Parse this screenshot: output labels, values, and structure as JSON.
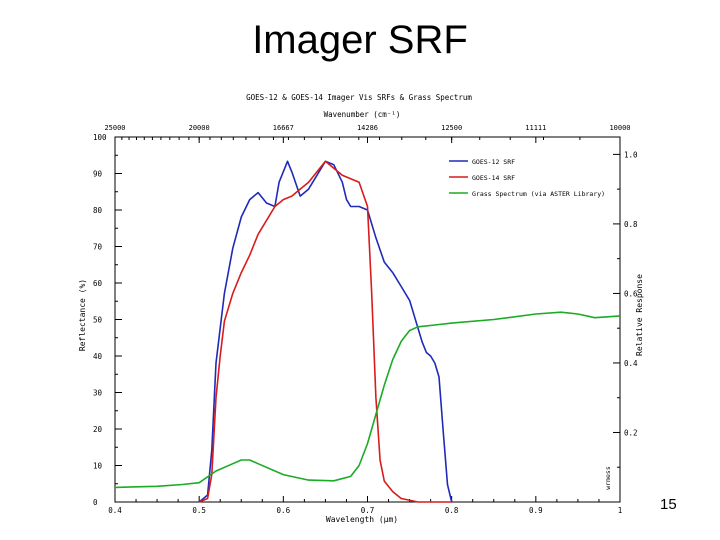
{
  "slide": {
    "title": "Imager SRF",
    "page_number": "15"
  },
  "chart_data": {
    "type": "line",
    "title": "GOES-12 & GOES-14 Imager Vis SRFs & Grass Spectrum",
    "xlabel": "Wavelength (μm)",
    "top_axis_label": "Wavenumber (cm⁻¹)",
    "ylabel_left": "Reflectance (%)",
    "ylabel_right": "Relative Response",
    "xlim": [
      0.4,
      1.0
    ],
    "ylim_left": [
      0,
      100
    ],
    "ylim_right": [
      0,
      1.05
    ],
    "x_ticks": [
      "0.4",
      "0.5",
      "0.6",
      "0.7",
      "0.8",
      "0.9",
      "1"
    ],
    "x_tick_values": [
      0.4,
      0.5,
      0.6,
      0.7,
      0.8,
      0.9,
      1.0
    ],
    "top_ticks": [
      "25000",
      "20000",
      "16667",
      "14286",
      "12500",
      "11111",
      "10000"
    ],
    "top_tick_values": [
      0.4,
      0.5,
      0.6,
      0.7,
      0.8,
      0.9,
      1.0
    ],
    "left_ticks": [
      "0",
      "10",
      "20",
      "30",
      "40",
      "50",
      "60",
      "70",
      "80",
      "90",
      "100"
    ],
    "left_tick_values": [
      0,
      10,
      20,
      30,
      40,
      50,
      60,
      70,
      80,
      90,
      100
    ],
    "right_ticks": [
      "0.2",
      "0.4",
      "0.6",
      "0.8",
      "1.0"
    ],
    "right_tick_values": [
      0.2,
      0.4,
      0.6,
      0.8,
      1.0
    ],
    "corner_note": "wrmess",
    "legend_position": "top-right",
    "grid": false,
    "series": [
      {
        "name": "GOES-12 SRF",
        "color": "#1f2bb8",
        "axis": "right",
        "x": [
          0.5,
          0.51,
          0.515,
          0.52,
          0.53,
          0.54,
          0.55,
          0.56,
          0.57,
          0.58,
          0.59,
          0.595,
          0.6,
          0.605,
          0.61,
          0.62,
          0.63,
          0.64,
          0.65,
          0.66,
          0.67,
          0.675,
          0.68,
          0.69,
          0.7,
          0.71,
          0.72,
          0.73,
          0.74,
          0.75,
          0.76,
          0.765,
          0.77,
          0.775,
          0.78,
          0.785,
          0.79,
          0.795,
          0.8
        ],
        "y": [
          0.0,
          0.02,
          0.15,
          0.4,
          0.6,
          0.73,
          0.82,
          0.87,
          0.89,
          0.86,
          0.85,
          0.92,
          0.95,
          0.98,
          0.95,
          0.88,
          0.9,
          0.94,
          0.98,
          0.97,
          0.92,
          0.87,
          0.85,
          0.85,
          0.84,
          0.76,
          0.69,
          0.66,
          0.62,
          0.58,
          0.5,
          0.46,
          0.43,
          0.42,
          0.4,
          0.36,
          0.2,
          0.05,
          0.0
        ]
      },
      {
        "name": "GOES-14 SRF",
        "color": "#d81c1c",
        "axis": "right",
        "x": [
          0.5,
          0.51,
          0.515,
          0.52,
          0.525,
          0.53,
          0.54,
          0.55,
          0.56,
          0.57,
          0.58,
          0.59,
          0.6,
          0.61,
          0.62,
          0.63,
          0.64,
          0.65,
          0.66,
          0.67,
          0.68,
          0.69,
          0.7,
          0.705,
          0.71,
          0.715,
          0.72,
          0.73,
          0.74,
          0.76,
          0.78,
          0.8
        ],
        "y": [
          0.0,
          0.01,
          0.08,
          0.3,
          0.42,
          0.52,
          0.6,
          0.66,
          0.71,
          0.77,
          0.81,
          0.85,
          0.87,
          0.88,
          0.9,
          0.92,
          0.95,
          0.98,
          0.96,
          0.94,
          0.93,
          0.92,
          0.85,
          0.6,
          0.3,
          0.12,
          0.06,
          0.03,
          0.01,
          0.0,
          0.0,
          0.0
        ]
      },
      {
        "name": "Grass Spectrum (via ASTER Library)",
        "color": "#1bab25",
        "axis": "left",
        "x": [
          0.4,
          0.45,
          0.48,
          0.5,
          0.52,
          0.54,
          0.55,
          0.56,
          0.57,
          0.6,
          0.63,
          0.66,
          0.68,
          0.69,
          0.7,
          0.71,
          0.72,
          0.73,
          0.74,
          0.75,
          0.76,
          0.78,
          0.8,
          0.85,
          0.9,
          0.93,
          0.95,
          0.97,
          1.0
        ],
        "y": [
          4.0,
          4.3,
          4.8,
          5.3,
          8.5,
          10.5,
          11.5,
          11.5,
          10.5,
          7.5,
          6.0,
          5.8,
          7.0,
          10.0,
          16.0,
          24.0,
          32.0,
          39.0,
          44.0,
          47.0,
          48.0,
          48.5,
          49.0,
          50.0,
          51.5,
          52.0,
          51.5,
          50.5,
          51.0
        ]
      }
    ]
  }
}
